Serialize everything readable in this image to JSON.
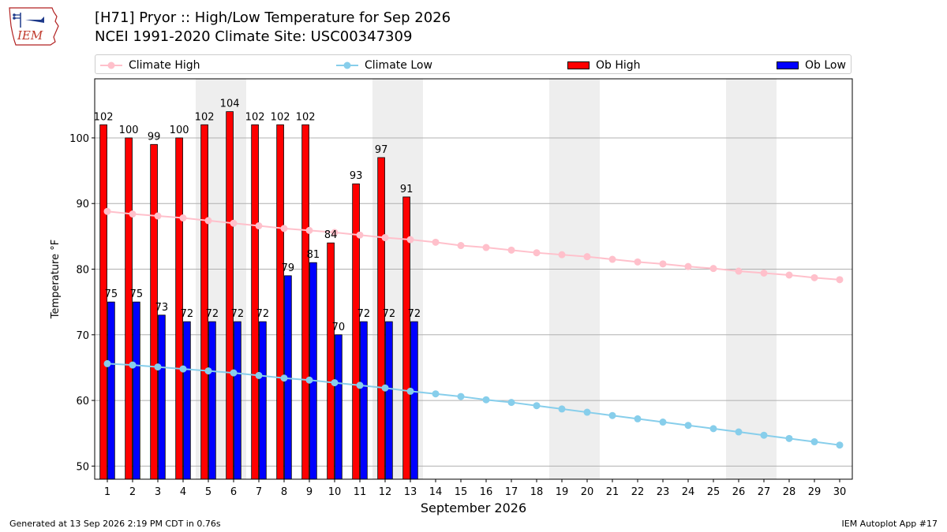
{
  "header": {
    "title_line1": "[H71] Pryor :: High/Low Temperature for Sep 2026",
    "title_line2": "NCEI 1991-2020 Climate Site: USC00347309"
  },
  "logo": {
    "text": "IEM"
  },
  "footer": {
    "left": "Generated at 13 Sep 2026 2:19 PM CDT in 0.76s",
    "right": "IEM Autoplot App #17"
  },
  "colors": {
    "climate_high": "#ffc0cb",
    "climate_low": "#87ceeb",
    "ob_high": "#ff0000",
    "ob_low": "#0000ff",
    "weekend_shade": "#eeeeee",
    "grid": "#b0b0b0"
  },
  "chart_data": {
    "type": "bar",
    "xlabel": "September 2026",
    "ylabel": "Temperature °F",
    "ylim": [
      48,
      109
    ],
    "xlim": [
      0.5,
      30.5
    ],
    "yticks": [
      50,
      60,
      70,
      80,
      90,
      100
    ],
    "grid": "horizontal",
    "legend_position": "top",
    "weekend_shading": [
      [
        4.5,
        6.5
      ],
      [
        11.5,
        13.5
      ],
      [
        18.5,
        20.5
      ],
      [
        25.5,
        27.5
      ]
    ],
    "days": [
      1,
      2,
      3,
      4,
      5,
      6,
      7,
      8,
      9,
      10,
      11,
      12,
      13,
      14,
      15,
      16,
      17,
      18,
      19,
      20,
      21,
      22,
      23,
      24,
      25,
      26,
      27,
      28,
      29,
      30
    ],
    "series": [
      {
        "name": "Climate High",
        "kind": "line",
        "values": [
          88.8,
          88.4,
          88.1,
          87.8,
          87.4,
          87.0,
          86.6,
          86.2,
          85.9,
          85.6,
          85.2,
          84.8,
          84.5,
          84.1,
          83.6,
          83.3,
          82.9,
          82.5,
          82.2,
          81.9,
          81.5,
          81.1,
          80.8,
          80.4,
          80.1,
          79.7,
          79.4,
          79.1,
          78.7,
          78.4
        ]
      },
      {
        "name": "Climate Low",
        "kind": "line",
        "values": [
          65.6,
          65.4,
          65.1,
          64.8,
          64.5,
          64.2,
          63.8,
          63.4,
          63.1,
          62.7,
          62.3,
          61.9,
          61.4,
          61.0,
          60.6,
          60.1,
          59.7,
          59.2,
          58.7,
          58.2,
          57.7,
          57.2,
          56.7,
          56.2,
          55.7,
          55.2,
          54.7,
          54.2,
          53.7,
          53.2
        ]
      },
      {
        "name": "Ob High",
        "kind": "bar",
        "values": [
          102,
          100,
          99,
          100,
          102,
          104,
          102,
          102,
          102,
          84,
          93,
          97,
          91
        ]
      },
      {
        "name": "Ob Low",
        "kind": "bar",
        "values": [
          75,
          75,
          73,
          72,
          72,
          72,
          72,
          79,
          81,
          70,
          72,
          72,
          72
        ]
      }
    ]
  }
}
